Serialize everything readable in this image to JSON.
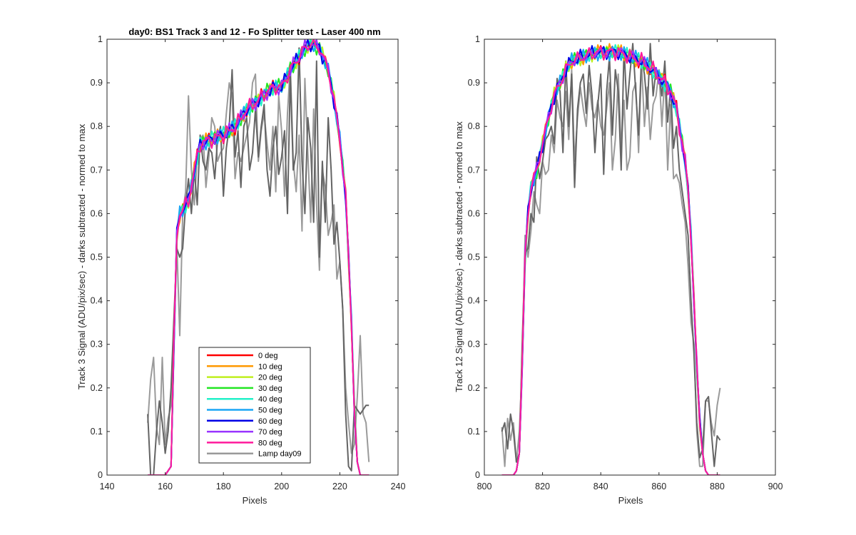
{
  "chart_data": [
    {
      "type": "line",
      "title": "day0: BS1  Track 3 and 12 - Fo Splitter test - Laser 400 nm",
      "xlabel": "Pixels",
      "ylabel": "Track 3 Signal (ADU/pix/sec) - darks subtracted - normed to max",
      "xlim": [
        140,
        240
      ],
      "ylim": [
        0,
        1
      ],
      "xticks": [
        "140",
        "160",
        "180",
        "200",
        "220",
        "240"
      ],
      "yticks": [
        "0",
        "0.1",
        "0.2",
        "0.3",
        "0.4",
        "0.5",
        "0.6",
        "0.7",
        "0.8",
        "0.9",
        "1"
      ],
      "grid": false,
      "legend": {
        "placement": "lower-center",
        "entries": [
          "0 deg",
          "10 deg",
          "20 deg",
          "30 deg",
          "40 deg",
          "50 deg",
          "60 deg",
          "70 deg",
          "80 deg",
          "Lamp day09"
        ]
      },
      "profile": {
        "x": [
          154,
          160,
          161,
          162,
          163,
          164,
          165,
          168,
          170,
          172,
          176,
          180,
          184,
          188,
          192,
          195,
          198,
          200,
          203,
          206,
          208,
          210,
          213,
          216,
          218,
          220,
          222,
          224,
          225,
          226,
          227,
          228,
          230
        ],
        "y": [
          0.0,
          0.0,
          0.01,
          0.02,
          0.3,
          0.55,
          0.6,
          0.63,
          0.7,
          0.76,
          0.77,
          0.78,
          0.8,
          0.84,
          0.86,
          0.88,
          0.89,
          0.89,
          0.93,
          0.96,
          0.98,
          0.99,
          0.98,
          0.93,
          0.86,
          0.77,
          0.64,
          0.35,
          0.15,
          0.03,
          0.0,
          0.0,
          0.0
        ]
      },
      "series": [
        {
          "name": "0 deg",
          "color": "#ff0000"
        },
        {
          "name": "10 deg",
          "color": "#ff9900"
        },
        {
          "name": "20 deg",
          "color": "#bfef1f"
        },
        {
          "name": "30 deg",
          "color": "#22e622"
        },
        {
          "name": "40 deg",
          "color": "#22f0c8"
        },
        {
          "name": "50 deg",
          "color": "#19a6f5"
        },
        {
          "name": "60 deg",
          "color": "#0000e6"
        },
        {
          "name": "70 deg",
          "color": "#9933ff"
        },
        {
          "name": "80 deg",
          "color": "#ff1a9c"
        }
      ],
      "lamp_series": [
        {
          "name": "Lamp day09",
          "color": "#9a9a9a",
          "x": [
            154,
            155,
            156,
            157,
            158,
            159,
            160,
            161,
            162,
            163,
            164,
            165,
            166,
            167,
            168,
            169,
            170,
            171,
            172,
            173,
            174,
            175,
            176,
            177,
            178,
            179,
            180,
            181,
            182,
            183,
            184,
            185,
            186,
            187,
            188,
            189,
            190,
            191,
            192,
            193,
            194,
            195,
            196,
            197,
            198,
            199,
            200,
            201,
            202,
            203,
            204,
            205,
            206,
            207,
            208,
            209,
            210,
            211,
            212,
            213,
            214,
            215,
            216,
            217,
            218,
            219,
            220,
            221,
            222,
            223,
            224,
            225,
            226,
            227,
            228,
            229,
            230
          ],
          "y": [
            0.12,
            0.22,
            0.27,
            0.11,
            0.07,
            0.27,
            0.07,
            0.13,
            0.16,
            0.3,
            0.53,
            0.32,
            0.6,
            0.65,
            0.87,
            0.7,
            0.62,
            0.73,
            0.77,
            0.78,
            0.66,
            0.73,
            0.82,
            0.8,
            0.72,
            0.74,
            0.75,
            0.83,
            0.9,
            0.87,
            0.68,
            0.74,
            0.72,
            0.75,
            0.78,
            0.81,
            0.9,
            0.92,
            0.72,
            0.79,
            0.83,
            0.76,
            0.7,
            0.8,
            0.65,
            0.87,
            0.79,
            0.64,
            0.83,
            0.94,
            0.72,
            0.65,
            0.78,
            0.56,
            0.91,
            0.74,
            0.58,
            0.84,
            0.62,
            0.47,
            0.7,
            0.66,
            0.55,
            0.58,
            0.62,
            0.45,
            0.49,
            0.38,
            0.2,
            0.12,
            0.05,
            0.07,
            0.18,
            0.32,
            0.14,
            0.12,
            0.03
          ]
        },
        {
          "name": "",
          "color": "#646464",
          "x": [
            154,
            155,
            156,
            157,
            158,
            159,
            160,
            161,
            162,
            163,
            164,
            165,
            166,
            167,
            168,
            169,
            170,
            171,
            172,
            173,
            174,
            175,
            176,
            177,
            178,
            179,
            180,
            181,
            182,
            183,
            184,
            185,
            186,
            187,
            188,
            189,
            190,
            191,
            192,
            193,
            194,
            195,
            196,
            197,
            198,
            199,
            200,
            201,
            202,
            203,
            204,
            205,
            206,
            207,
            208,
            209,
            210,
            211,
            212,
            213,
            214,
            215,
            216,
            217,
            218,
            219,
            220,
            221,
            222,
            223,
            224,
            225,
            226,
            227,
            228,
            229,
            230
          ],
          "y": [
            0.14,
            0.0,
            0.0,
            0.1,
            0.17,
            0.12,
            0.05,
            0.1,
            0.2,
            0.36,
            0.52,
            0.5,
            0.52,
            0.62,
            0.68,
            0.6,
            0.7,
            0.62,
            0.78,
            0.72,
            0.7,
            0.75,
            0.74,
            0.68,
            0.77,
            0.8,
            0.64,
            0.75,
            0.8,
            0.93,
            0.73,
            0.79,
            0.66,
            0.8,
            0.82,
            0.7,
            0.74,
            0.84,
            0.73,
            0.8,
            0.85,
            0.7,
            0.64,
            0.75,
            0.8,
            0.69,
            0.73,
            0.79,
            0.6,
            0.92,
            0.7,
            0.74,
            0.98,
            0.72,
            0.6,
            0.82,
            0.75,
            0.58,
            0.95,
            0.5,
            0.72,
            0.58,
            0.82,
            0.7,
            0.53,
            0.58,
            0.49,
            0.38,
            0.14,
            0.02,
            0.01,
            0.16,
            0.15,
            0.14,
            0.15,
            0.16,
            0.16
          ]
        }
      ]
    },
    {
      "type": "line",
      "title": "",
      "xlabel": "Pixels",
      "ylabel": "Track 12 Signal (ADU/pix/sec) - darks subtracted - normed to max",
      "xlim": [
        800,
        900
      ],
      "ylim": [
        0,
        1
      ],
      "xticks": [
        "800",
        "820",
        "840",
        "860",
        "880",
        "900"
      ],
      "yticks": [
        "0",
        "0.1",
        "0.2",
        "0.3",
        "0.4",
        "0.5",
        "0.6",
        "0.7",
        "0.8",
        "0.9",
        "1"
      ],
      "grid": false,
      "profile": {
        "x": [
          806,
          810,
          811,
          812,
          813,
          814,
          815,
          816,
          818,
          820,
          822,
          824,
          826,
          828,
          830,
          834,
          838,
          842,
          846,
          850,
          854,
          858,
          862,
          864,
          866,
          868,
          869,
          870,
          871,
          872,
          873,
          874,
          875,
          876,
          877,
          878,
          881
        ],
        "y": [
          0.0,
          0.0,
          0.01,
          0.05,
          0.25,
          0.5,
          0.6,
          0.66,
          0.7,
          0.76,
          0.82,
          0.87,
          0.9,
          0.93,
          0.95,
          0.96,
          0.97,
          0.97,
          0.97,
          0.96,
          0.95,
          0.93,
          0.9,
          0.88,
          0.84,
          0.76,
          0.72,
          0.65,
          0.55,
          0.4,
          0.25,
          0.12,
          0.05,
          0.01,
          0.0,
          0.0,
          0.0
        ]
      },
      "series": [
        {
          "name": "0 deg",
          "color": "#ff0000"
        },
        {
          "name": "10 deg",
          "color": "#ff9900"
        },
        {
          "name": "20 deg",
          "color": "#bfef1f"
        },
        {
          "name": "30 deg",
          "color": "#22e622"
        },
        {
          "name": "40 deg",
          "color": "#22f0c8"
        },
        {
          "name": "50 deg",
          "color": "#19a6f5"
        },
        {
          "name": "60 deg",
          "color": "#0000e6"
        },
        {
          "name": "70 deg",
          "color": "#9933ff"
        },
        {
          "name": "80 deg",
          "color": "#ff1a9c"
        }
      ],
      "lamp_series": [
        {
          "name": "Lamp day09",
          "color": "#9a9a9a",
          "x": [
            806,
            807,
            808,
            809,
            810,
            811,
            812,
            813,
            814,
            815,
            816,
            817,
            818,
            819,
            820,
            821,
            822,
            823,
            824,
            825,
            826,
            827,
            828,
            829,
            830,
            831,
            832,
            833,
            834,
            835,
            836,
            837,
            838,
            839,
            840,
            841,
            842,
            843,
            844,
            845,
            846,
            847,
            848,
            849,
            850,
            851,
            852,
            853,
            854,
            855,
            856,
            857,
            858,
            859,
            860,
            861,
            862,
            863,
            864,
            865,
            866,
            867,
            868,
            869,
            870,
            871,
            872,
            873,
            874,
            875,
            876,
            877,
            878,
            879,
            880,
            881
          ],
          "y": [
            0.11,
            0.02,
            0.13,
            0.08,
            0.12,
            0.03,
            0.1,
            0.25,
            0.55,
            0.5,
            0.56,
            0.65,
            0.62,
            0.6,
            0.72,
            0.69,
            0.7,
            0.78,
            0.74,
            0.86,
            0.82,
            0.8,
            0.88,
            0.77,
            0.93,
            0.72,
            0.82,
            0.89,
            0.84,
            0.8,
            0.9,
            0.84,
            0.82,
            0.86,
            0.8,
            0.78,
            0.84,
            0.9,
            0.7,
            0.77,
            0.92,
            0.75,
            0.86,
            0.7,
            0.73,
            0.88,
            0.9,
            0.74,
            0.95,
            0.8,
            0.89,
            0.77,
            0.85,
            0.87,
            0.93,
            0.8,
            0.92,
            0.7,
            0.85,
            0.68,
            0.69,
            0.67,
            0.62,
            0.58,
            0.48,
            0.35,
            0.3,
            0.1,
            0.02,
            0.02,
            0.17,
            0.17,
            0.12,
            0.09,
            0.16,
            0.2
          ]
        },
        {
          "name": "",
          "color": "#646464",
          "x": [
            806,
            807,
            808,
            809,
            810,
            811,
            812,
            813,
            814,
            815,
            816,
            817,
            818,
            819,
            820,
            821,
            822,
            823,
            824,
            825,
            826,
            827,
            828,
            829,
            830,
            831,
            832,
            833,
            834,
            835,
            836,
            837,
            838,
            839,
            840,
            841,
            842,
            843,
            844,
            845,
            846,
            847,
            848,
            849,
            850,
            851,
            852,
            853,
            854,
            855,
            856,
            857,
            858,
            859,
            860,
            861,
            862,
            863,
            864,
            865,
            866,
            867,
            868,
            869,
            870,
            871,
            872,
            873,
            874,
            875,
            876,
            877,
            878,
            879,
            880,
            881
          ],
          "y": [
            0.1,
            0.12,
            0.06,
            0.14,
            0.1,
            0.03,
            0.05,
            0.3,
            0.51,
            0.52,
            0.6,
            0.58,
            0.73,
            0.68,
            0.72,
            0.77,
            0.78,
            0.8,
            0.76,
            0.91,
            0.88,
            0.74,
            0.95,
            0.8,
            0.92,
            0.66,
            0.84,
            0.9,
            0.92,
            0.83,
            0.94,
            0.87,
            0.74,
            0.85,
            0.92,
            0.69,
            0.88,
            0.96,
            0.78,
            0.93,
            0.88,
            0.7,
            0.98,
            0.84,
            0.92,
            0.99,
            0.88,
            0.78,
            0.96,
            0.92,
            0.84,
            0.99,
            0.87,
            0.93,
            0.92,
            0.87,
            0.95,
            0.81,
            0.89,
            0.75,
            0.8,
            0.7,
            0.65,
            0.6,
            0.55,
            0.4,
            0.28,
            0.12,
            0.04,
            0.06,
            0.17,
            0.18,
            0.1,
            0.02,
            0.09,
            0.08
          ]
        }
      ]
    }
  ]
}
